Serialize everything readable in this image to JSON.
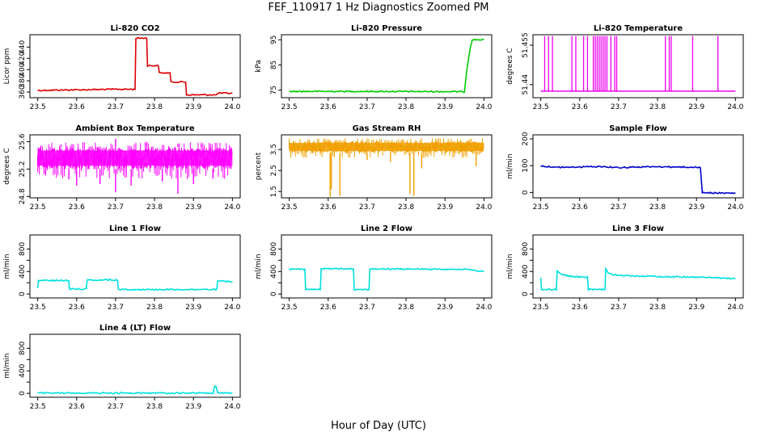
{
  "title": "FEF_110917  1 Hz Diagnostics Zoomed PM",
  "xlabel": "Hour of Day (UTC)",
  "chart_data": [
    {
      "type": "line",
      "title": "Li-820 CO2",
      "ylabel": "Licor ppm",
      "color": "#dd0000",
      "xlim": [
        23.48,
        24.02
      ],
      "ylim": [
        350,
        462
      ],
      "xticks": [
        "23.5",
        "23.6",
        "23.7",
        "23.8",
        "23.9",
        "24.0"
      ],
      "yticks": [
        360,
        380,
        400,
        420,
        440
      ],
      "series": [
        {
          "x": [
            23.5,
            23.6,
            23.7,
            23.75,
            23.752,
            23.78,
            23.782,
            23.81,
            23.812,
            23.84,
            23.842,
            23.88,
            23.882,
            23.96,
            23.962,
            24.0
          ],
          "y": [
            363,
            364,
            365,
            365,
            456,
            456,
            407,
            407,
            394,
            394,
            378,
            378,
            355,
            355,
            358,
            358
          ]
        }
      ]
    },
    {
      "type": "line",
      "title": "Li-820 Pressure",
      "ylabel": "kPa",
      "color": "#00cc00",
      "xlim": [
        23.48,
        24.02
      ],
      "ylim": [
        72,
        97
      ],
      "xticks": [
        "23.5",
        "23.6",
        "23.7",
        "23.8",
        "23.9",
        "24.0"
      ],
      "yticks": [
        75,
        85,
        95
      ],
      "series": [
        {
          "x": [
            23.5,
            23.7,
            23.94,
            23.95,
            23.955,
            23.965,
            23.97,
            24.0
          ],
          "y": [
            74.5,
            74.5,
            74.4,
            74.3,
            82,
            92,
            95,
            95
          ]
        }
      ]
    },
    {
      "type": "line",
      "title": "Li-820 Temperature",
      "ylabel": "degrees C",
      "color": "#ee00ee",
      "xlim": [
        23.48,
        24.02
      ],
      "ylim": [
        51.435,
        51.459
      ],
      "xticks": [
        "23.5",
        "23.6",
        "23.7",
        "23.8",
        "23.9",
        "24.0"
      ],
      "yticks": [
        51.44,
        51.455
      ],
      "baseline": 51.4375,
      "spike_top": 51.4585,
      "spikes": [
        23.51,
        23.52,
        23.53,
        23.58,
        23.59,
        23.61,
        23.62,
        23.635,
        23.64,
        23.645,
        23.65,
        23.655,
        23.66,
        23.665,
        23.67,
        23.68,
        23.69,
        23.695,
        23.82,
        23.83,
        23.835,
        23.89,
        23.955
      ]
    },
    {
      "type": "line",
      "title": "Ambient Box Temperature",
      "ylabel": "degrees C",
      "color": "#ff00ff",
      "xlim": [
        23.48,
        24.02
      ],
      "ylim": [
        24.78,
        25.7
      ],
      "xticks": [
        "23.5",
        "23.6",
        "23.7",
        "23.8",
        "23.9",
        "24.0"
      ],
      "yticks": [
        24.8,
        25.2,
        25.6
      ],
      "ytick_labels": [
        "24.8",
        "25.2",
        "25.6"
      ],
      "band": [
        25.2,
        25.52
      ],
      "dips": [
        [
          23.52,
          25.12
        ],
        [
          23.58,
          25.05
        ],
        [
          23.6,
          24.96
        ],
        [
          23.66,
          24.98
        ],
        [
          23.7,
          24.86
        ],
        [
          23.74,
          24.96
        ],
        [
          23.82,
          25.02
        ],
        [
          23.86,
          24.84
        ],
        [
          23.9,
          24.98
        ],
        [
          23.95,
          25.06
        ]
      ],
      "peaks": [
        [
          23.56,
          25.56
        ],
        [
          23.7,
          25.64
        ],
        [
          23.78,
          25.58
        ],
        [
          23.86,
          25.57
        ],
        [
          23.92,
          25.56
        ]
      ]
    },
    {
      "type": "line",
      "title": "Gas Stream RH",
      "ylabel": "percent",
      "color": "#f0a000",
      "xlim": [
        23.48,
        24.02
      ],
      "ylim": [
        1.2,
        4.2
      ],
      "xticks": [
        "23.5",
        "23.6",
        "23.7",
        "23.8",
        "23.9",
        "24.0"
      ],
      "yticks": [
        1.5,
        2.5,
        3.5
      ],
      "ytick_labels": [
        "1.5",
        "2.5",
        "3.5"
      ],
      "band": [
        3.35,
        3.9
      ],
      "dips": [
        [
          23.605,
          1.25
        ],
        [
          23.608,
          1.6
        ],
        [
          23.63,
          1.3
        ],
        [
          23.7,
          3.0
        ],
        [
          23.76,
          2.9
        ],
        [
          23.81,
          1.4
        ],
        [
          23.82,
          1.3
        ],
        [
          23.84,
          2.6
        ],
        [
          23.98,
          2.7
        ]
      ]
    },
    {
      "type": "line",
      "title": "Sample Flow",
      "ylabel": "ml/min",
      "color": "#0000cc",
      "xlim": [
        23.48,
        24.02
      ],
      "ylim": [
        -20,
        215
      ],
      "xticks": [
        "23.5",
        "23.6",
        "23.7",
        "23.8",
        "23.9",
        "24.0"
      ],
      "yticks": [
        0,
        100,
        200
      ],
      "series": [
        {
          "x": [
            23.5,
            23.55,
            23.6,
            23.65,
            23.7,
            23.75,
            23.8,
            23.85,
            23.9,
            23.91,
            23.915,
            23.95,
            24.0
          ],
          "y": [
            98,
            94,
            95,
            97,
            93,
            95,
            96,
            95,
            94,
            92,
            0,
            -2,
            -3
          ]
        }
      ]
    },
    {
      "type": "line",
      "title": "Line 1 Flow",
      "ylabel": "ml/min",
      "color": "#00e0e0",
      "xlim": [
        23.48,
        24.02
      ],
      "ylim": [
        -70,
        1050
      ],
      "xticks": [
        "23.5",
        "23.6",
        "23.7",
        "23.8",
        "23.9",
        "24.0"
      ],
      "yticks": [
        0,
        200,
        400,
        600,
        800
      ],
      "ytick_labels": [
        "0",
        "400",
        "800"
      ],
      "series": [
        {
          "x": [
            23.5,
            23.502,
            23.58,
            23.582,
            23.625,
            23.627,
            23.705,
            23.707,
            23.96,
            23.962,
            24.0
          ],
          "y": [
            100,
            240,
            240,
            90,
            90,
            250,
            250,
            80,
            80,
            230,
            220
          ]
        }
      ]
    },
    {
      "type": "line",
      "title": "Line 2 Flow",
      "ylabel": "ml/min",
      "color": "#00e0e0",
      "xlim": [
        23.48,
        24.02
      ],
      "ylim": [
        -70,
        1050
      ],
      "xticks": [
        "23.5",
        "23.6",
        "23.7",
        "23.8",
        "23.9",
        "24.0"
      ],
      "yticks": [
        0,
        200,
        400,
        600,
        800
      ],
      "ytick_labels": [
        "0",
        "400",
        "800"
      ],
      "series": [
        {
          "x": [
            23.5,
            23.54,
            23.542,
            23.58,
            23.582,
            23.665,
            23.667,
            23.705,
            23.707,
            23.95,
            24.0
          ],
          "y": [
            440,
            440,
            80,
            80,
            450,
            450,
            80,
            80,
            445,
            440,
            400
          ]
        }
      ]
    },
    {
      "type": "line",
      "title": "Line 3 Flow",
      "ylabel": "ml/min",
      "color": "#00e0e0",
      "xlim": [
        23.48,
        24.02
      ],
      "ylim": [
        -70,
        1050
      ],
      "xticks": [
        "23.5",
        "23.6",
        "23.7",
        "23.8",
        "23.9",
        "24.0"
      ],
      "yticks": [
        0,
        200,
        400,
        600,
        800
      ],
      "ytick_labels": [
        "0",
        "400",
        "800"
      ],
      "series": [
        {
          "x": [
            23.5,
            23.502,
            23.504,
            23.54,
            23.542,
            23.55,
            23.57,
            23.6,
            23.62,
            23.622,
            23.665,
            23.667,
            23.675,
            23.7,
            23.75,
            23.8,
            23.9,
            23.95,
            24.0
          ],
          "y": [
            280,
            80,
            80,
            80,
            420,
            360,
            320,
            300,
            300,
            80,
            80,
            440,
            360,
            330,
            320,
            310,
            300,
            290,
            270
          ]
        }
      ]
    },
    {
      "type": "line",
      "title": "Line 4 (LT) Flow",
      "ylabel": "ml/min",
      "color": "#00e0e0",
      "xlim": [
        23.48,
        24.02
      ],
      "ylim": [
        -70,
        1050
      ],
      "xticks": [
        "23.5",
        "23.6",
        "23.7",
        "23.8",
        "23.9",
        "24.0"
      ],
      "yticks": [
        0,
        200,
        400,
        600,
        800
      ],
      "ytick_labels": [
        "0",
        "400",
        "800"
      ],
      "series": [
        {
          "x": [
            23.5,
            23.7,
            23.95,
            23.955,
            23.958,
            23.962,
            24.0
          ],
          "y": [
            5,
            5,
            5,
            140,
            130,
            5,
            5
          ]
        }
      ]
    }
  ]
}
